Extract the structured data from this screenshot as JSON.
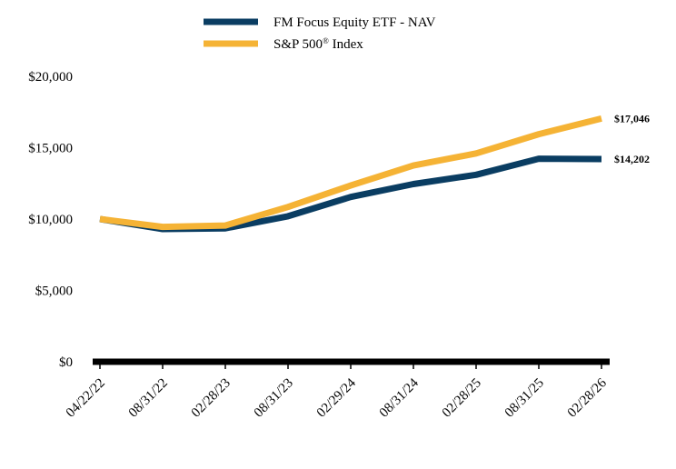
{
  "chart_data": {
    "type": "line",
    "title": "",
    "xlabel": "",
    "ylabel": "",
    "categories": [
      "04/22/22",
      "08/31/22",
      "02/28/23",
      "08/31/23",
      "02/29/24",
      "08/31/24",
      "02/28/25",
      "08/31/25",
      "02/28/26"
    ],
    "ylim": [
      0,
      20000
    ],
    "y_ticks": [
      0,
      5000,
      10000,
      15000,
      20000
    ],
    "y_tick_labels": [
      "$0",
      "$5,000",
      "$10,000",
      "$15,000",
      "$20,000"
    ],
    "grid": false,
    "legend_position": "top-center",
    "series": [
      {
        "name": "FM Focus Equity ETF - NAV",
        "color": "#0a3d62",
        "values": [
          10000,
          9300,
          9350,
          10200,
          11550,
          12450,
          13100,
          14230,
          14202
        ],
        "end_label": "$14,202"
      },
      {
        "name": "S&P 500® Index",
        "color": "#f5b335",
        "values": [
          10000,
          9450,
          9550,
          10850,
          12350,
          13750,
          14600,
          15950,
          17046
        ],
        "end_label": "$17,046"
      }
    ]
  }
}
